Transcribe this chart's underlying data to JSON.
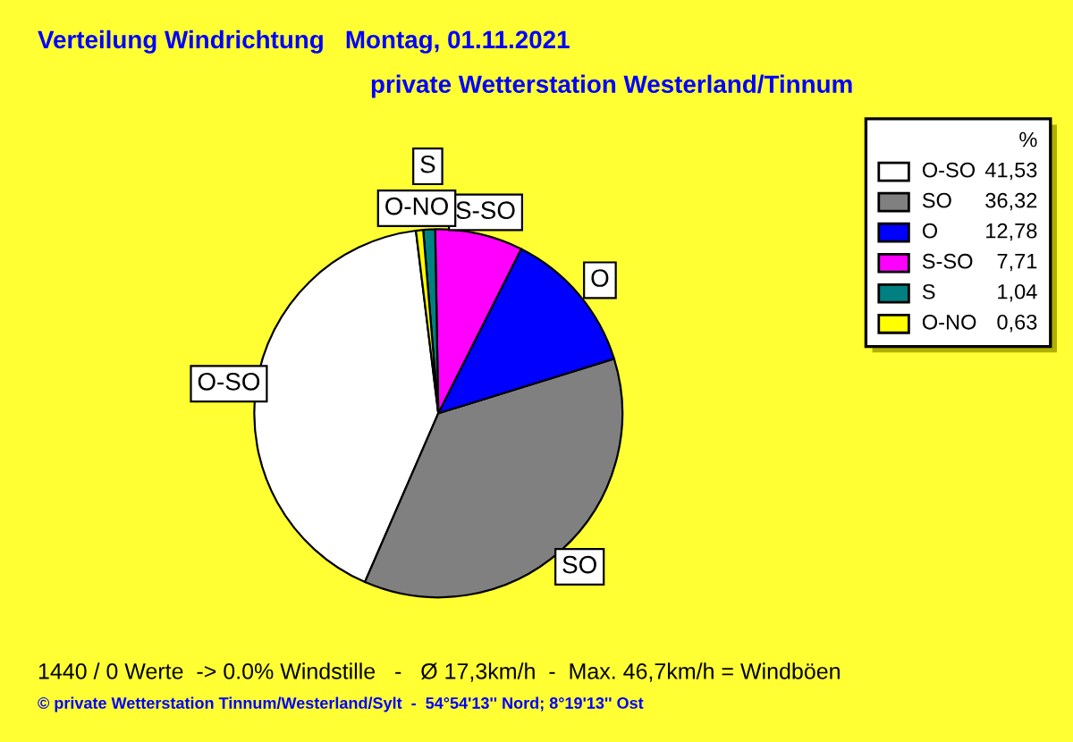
{
  "chart_data": {
    "type": "pie",
    "title": "Verteilung Windrichtung   Montag, 01.11.2021",
    "subtitle": "private Wetterstation Westerland/Tinnum",
    "categories": [
      "O-SO",
      "SO",
      "O",
      "S-SO",
      "S",
      "O-NO"
    ],
    "values": [
      41.53,
      36.32,
      12.78,
      7.71,
      1.04,
      0.63
    ],
    "value_labels": [
      "41,53",
      "36,32",
      "12,78",
      "7,71",
      "1,04",
      "0,63"
    ],
    "colors": [
      "#ffffff",
      "#808080",
      "#0000ff",
      "#ff00ff",
      "#008080",
      "#ffff00"
    ],
    "legend": "right",
    "legend_title": "%",
    "annotations": [
      "1440 / 0 Werte  -> 0.0% Windstille   -   Ø 17,3km/h  -  Max. 46,7km/h = Windböen",
      "© private Wetterstation Tinnum/Westerland/Sylt  -  54°54'13'' Nord; 8°19'13'' Ost"
    ]
  }
}
